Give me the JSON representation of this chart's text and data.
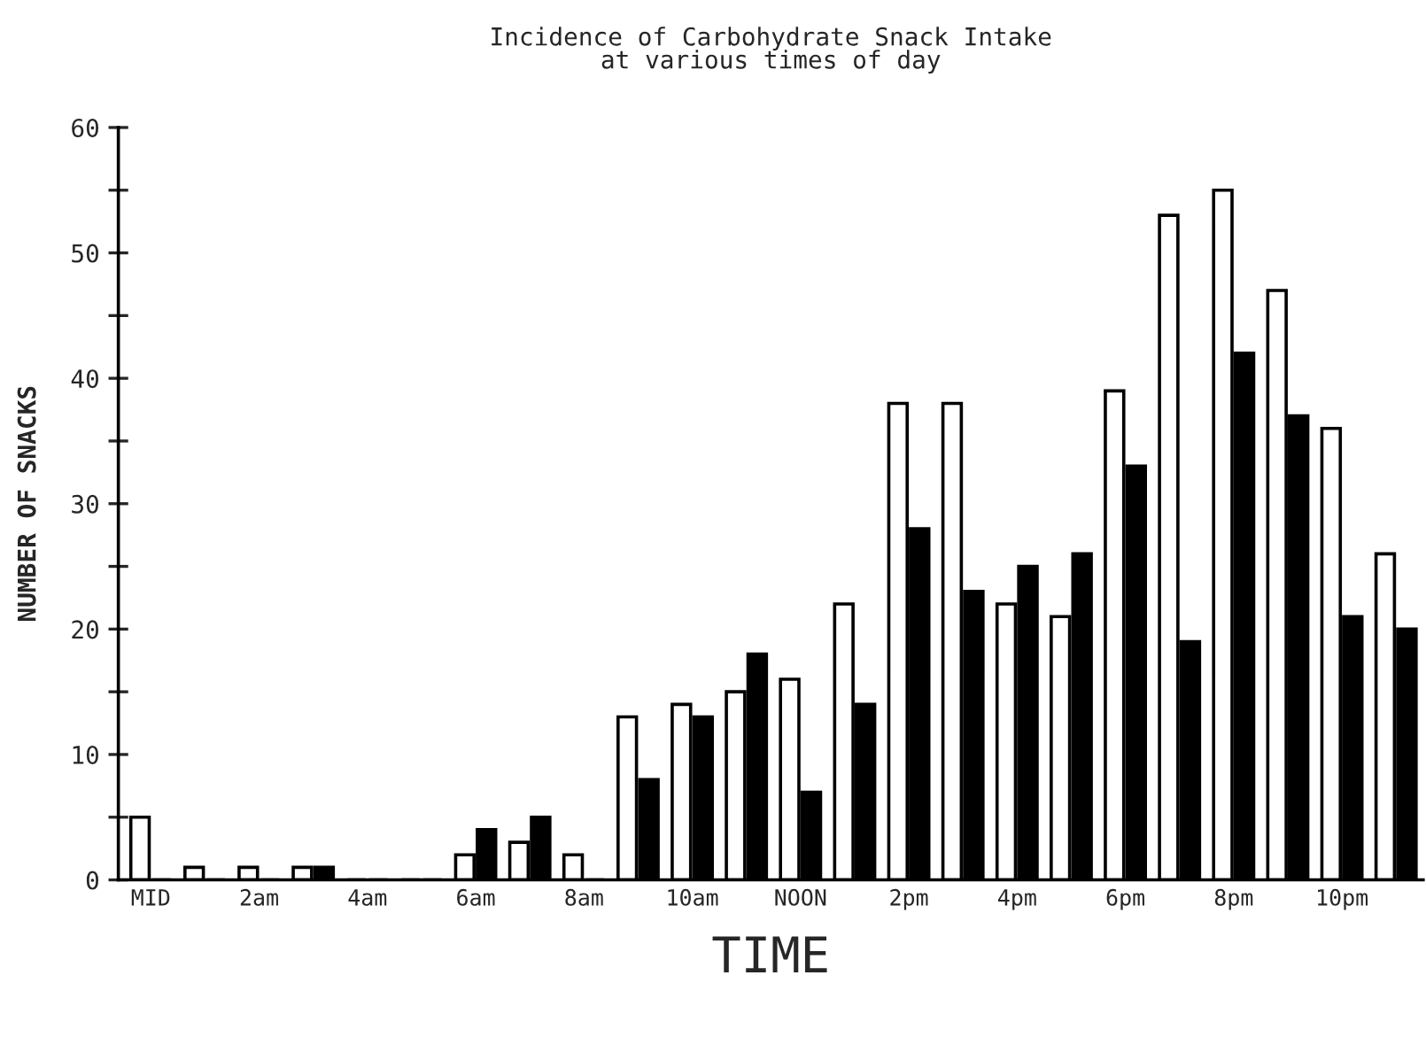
{
  "chart_data": {
    "type": "bar",
    "title": "Incidence of Carbohydrate Snack Intake\nat various times of day",
    "xlabel": "TIME",
    "ylabel": "NUMBER OF SNACKS",
    "categories": [
      "MID",
      null,
      "2am",
      null,
      "4am",
      null,
      "6am",
      null,
      "8am",
      null,
      "10am",
      null,
      "NOON",
      null,
      "2pm",
      null,
      "4pm",
      null,
      "6pm",
      null,
      "8pm",
      null,
      "10pm",
      null
    ],
    "series": [
      {
        "color": "#ffffff",
        "values": [
          5,
          1,
          1,
          1,
          0,
          0,
          2,
          3,
          2,
          13,
          14,
          15,
          16,
          22,
          38,
          38,
          22,
          21,
          39,
          53,
          55,
          47,
          36,
          26
        ]
      },
      {
        "color": "#000000",
        "values": [
          0,
          0,
          0,
          1,
          0,
          0,
          4,
          5,
          0,
          8,
          13,
          18,
          7,
          14,
          28,
          23,
          25,
          26,
          33,
          19,
          42,
          37,
          21,
          20
        ]
      }
    ],
    "ylim": [
      0,
      60
    ],
    "yticks": [
      0,
      {
        "value": 5,
        "label": null
      },
      10,
      {
        "value": 15,
        "label": null
      },
      20,
      {
        "value": 25,
        "label": null
      },
      30,
      {
        "value": 35,
        "label": null
      },
      40,
      {
        "value": 45,
        "label": null
      },
      50,
      {
        "value": 55,
        "label": null
      },
      60
    ],
    "grid": false
  }
}
